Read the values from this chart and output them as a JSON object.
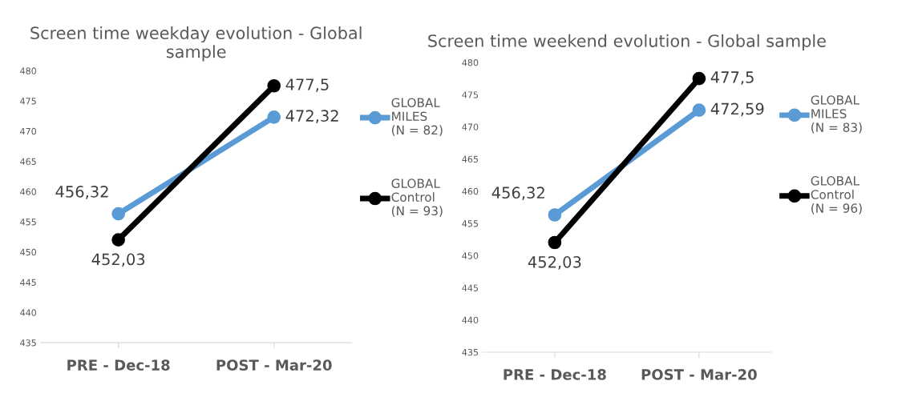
{
  "chart_data": [
    {
      "type": "line",
      "title": "Screen time weekday evolution - Global sample",
      "categories": [
        "PRE - Dec-18",
        "POST - Mar-20"
      ],
      "ylim": [
        435,
        480
      ],
      "yticks": [
        435,
        440,
        445,
        450,
        455,
        460,
        465,
        470,
        475,
        480
      ],
      "grid": false,
      "legend": "right",
      "marker": "circle",
      "line_style": "solid",
      "series": [
        {
          "name": "GLOBAL MILES (N = 82)",
          "color": "#5b9bd5",
          "values": [
            456.32,
            472.32
          ],
          "value_labels": [
            "456,32",
            "472,32"
          ]
        },
        {
          "name": "GLOBAL Control (N = 93)",
          "color": "#000000",
          "values": [
            452.03,
            477.5
          ],
          "value_labels": [
            "452,03",
            "477,5"
          ]
        }
      ]
    },
    {
      "type": "line",
      "title": "Screen time weekend evolution - Global sample",
      "categories": [
        "PRE - Dec-18",
        "POST - Mar-20"
      ],
      "ylim": [
        435,
        480
      ],
      "yticks": [
        435,
        440,
        445,
        450,
        455,
        460,
        465,
        470,
        475,
        480
      ],
      "grid": false,
      "legend": "right",
      "marker": "circle",
      "line_style": "solid",
      "series": [
        {
          "name": "GLOBAL MILES (N = 83)",
          "color": "#5b9bd5",
          "values": [
            456.32,
            472.59
          ],
          "value_labels": [
            "456,32",
            "472,59"
          ]
        },
        {
          "name": "GLOBAL Control (N = 96)",
          "color": "#000000",
          "values": [
            452.03,
            477.5
          ],
          "value_labels": [
            "452,03",
            "477,5"
          ]
        }
      ]
    }
  ]
}
